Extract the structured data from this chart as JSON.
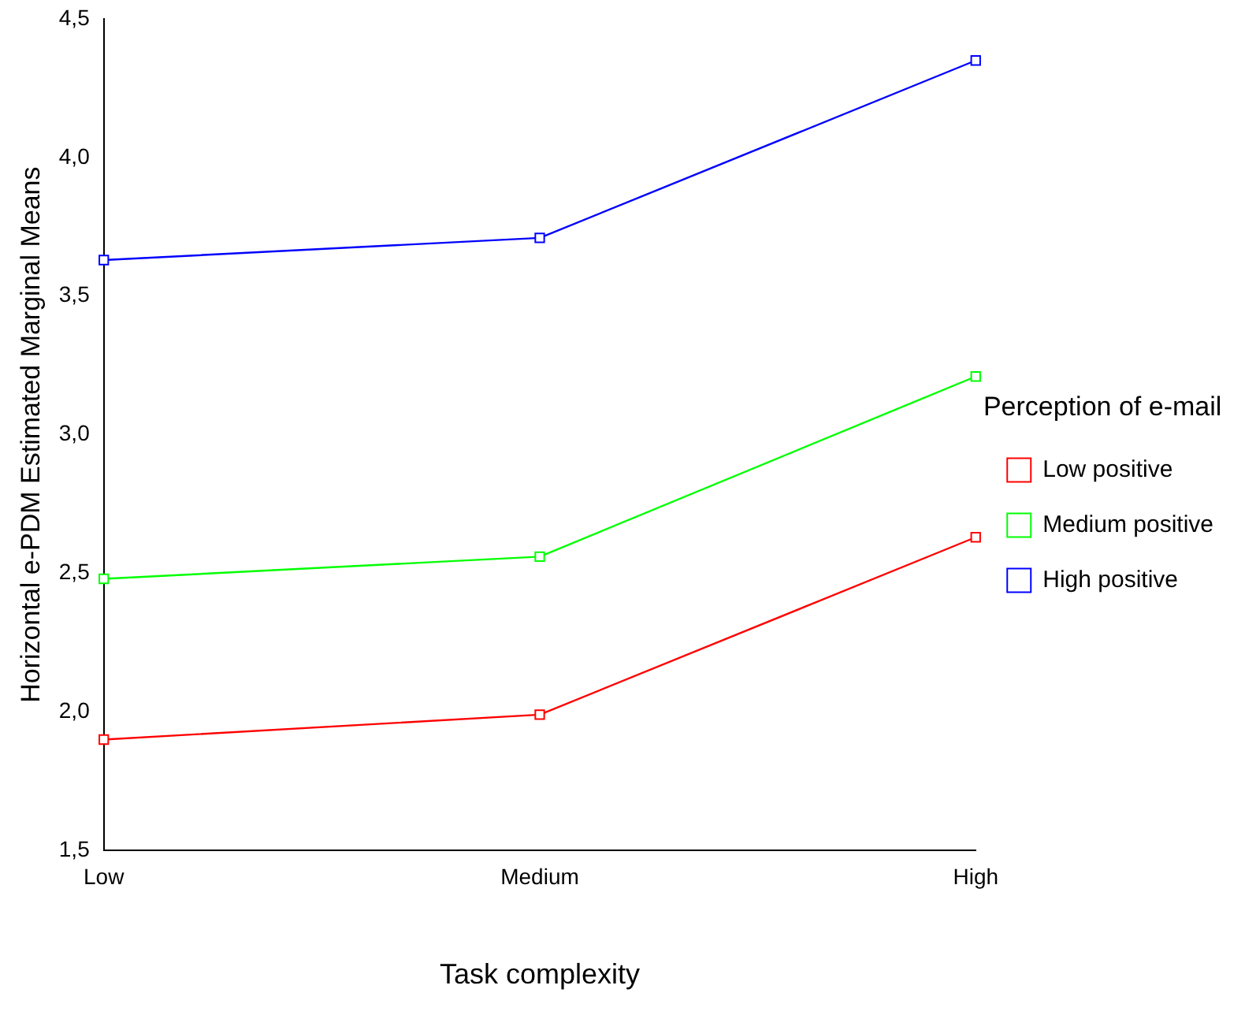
{
  "chart_data": {
    "type": "line",
    "xlabel": "Task complexity",
    "ylabel": "Horizontal e-PDM Estimated Marginal Means",
    "legend_title": "Perception of e-mail",
    "categories": [
      "Low",
      "Medium",
      "High"
    ],
    "series": [
      {
        "name": "Low positive",
        "color": "#ff0000",
        "values": [
          1.9,
          1.99,
          2.63
        ]
      },
      {
        "name": "Medium positive",
        "color": "#00ff00",
        "values": [
          2.48,
          2.56,
          3.21
        ]
      },
      {
        "name": "High positive",
        "color": "#0000ff",
        "values": [
          3.63,
          3.71,
          4.35
        ]
      }
    ],
    "ylim": [
      1.5,
      4.5
    ],
    "yticks": [
      {
        "value": 1.5,
        "label": "1,5"
      },
      {
        "value": 2,
        "label": "2,0"
      },
      {
        "value": 2.5,
        "label": "2,5"
      },
      {
        "value": 3,
        "label": "3,0"
      },
      {
        "value": 3.5,
        "label": "3,5"
      },
      {
        "value": 4,
        "label": "4,0"
      },
      {
        "value": 4.5,
        "label": "4,5"
      }
    ],
    "grid": false,
    "legend": "right",
    "marker": "square",
    "line_style": "solid"
  }
}
